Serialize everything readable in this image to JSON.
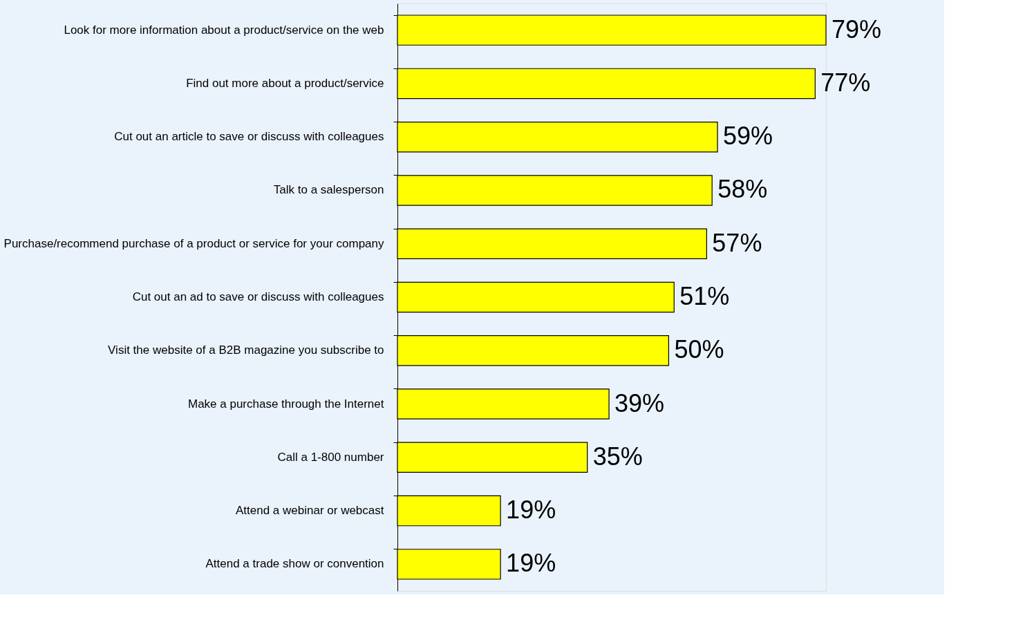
{
  "chart_data": {
    "type": "bar",
    "orientation": "horizontal",
    "categories": [
      "Look for more information about a product/service on the web",
      "Find out more about a product/service",
      "Cut out an article to save or discuss with colleagues",
      "Talk to a salesperson",
      "Purchase/recommend purchase of a product or service for your company",
      "Cut out an ad to save or discuss with colleagues",
      "Visit the website of a B2B magazine you subscribe to",
      "Make a purchase through the Internet",
      "Call a 1-800 number",
      "Attend a webinar or webcast",
      "Attend a trade show or convention"
    ],
    "values": [
      79,
      77,
      59,
      58,
      57,
      51,
      50,
      39,
      35,
      19,
      19
    ],
    "value_labels": [
      "79%",
      "77%",
      "59%",
      "58%",
      "57%",
      "51%",
      "50%",
      "39%",
      "35%",
      "19%",
      "19%"
    ],
    "color": "#ffff00",
    "grid": false,
    "tick_labels": "y"
  }
}
